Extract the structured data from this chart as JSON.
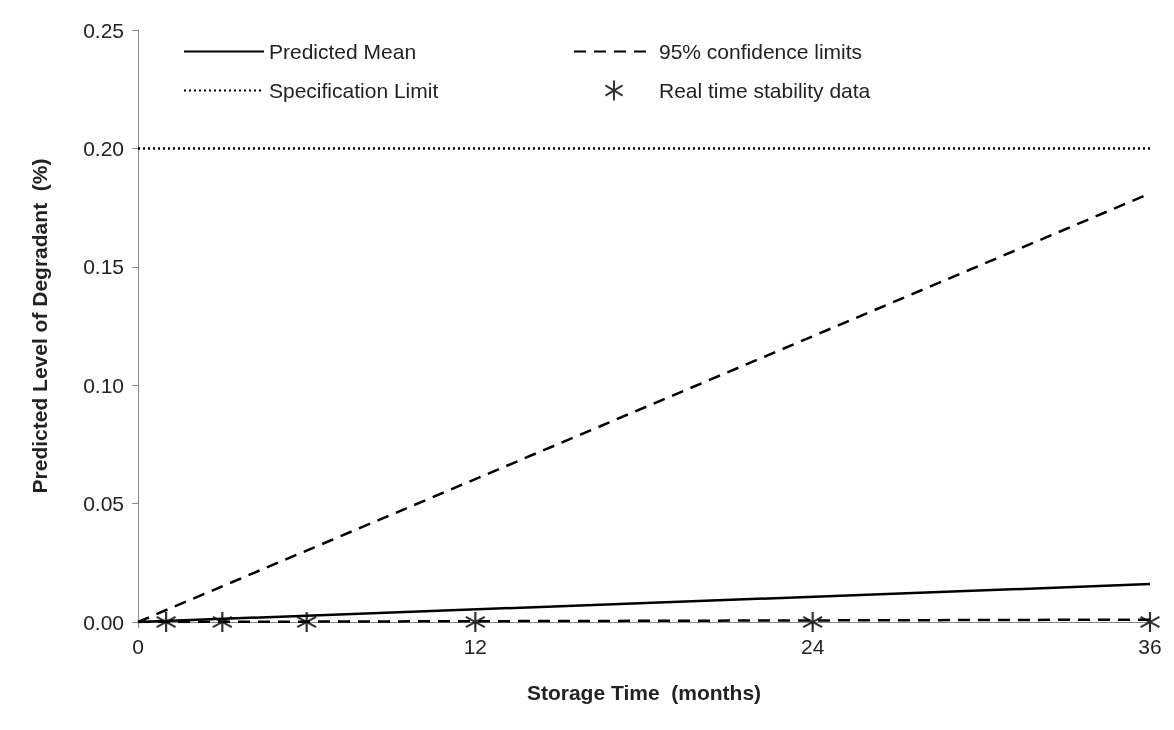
{
  "chart_data": {
    "type": "line",
    "xlabel": "Storage Time  (months)",
    "ylabel": "Predicted Level of Degradant  (%)",
    "xlim": [
      0,
      36
    ],
    "xticks": [
      0,
      12,
      24,
      36
    ],
    "ylim": [
      0,
      0.25
    ],
    "yticks": [
      {
        "value": 0,
        "label": "0.00"
      },
      {
        "value": 0.05,
        "label": "0.05"
      },
      {
        "value": 0.1,
        "label": "0.10"
      },
      {
        "value": 0.15,
        "label": "0.15"
      },
      {
        "value": 0.2,
        "label": "0.20"
      },
      {
        "value": 0.25,
        "label": "0.25"
      }
    ],
    "grid": false,
    "legend": "top left",
    "marker": "none",
    "series": [
      {
        "name": "Predicted Mean",
        "line_style": "solid",
        "color": "#000000",
        "x": [
          0,
          36
        ],
        "values": [
          0,
          0.016
        ]
      },
      {
        "name": "95% confidence limits",
        "line_style": "dashed",
        "color": "#000000",
        "x": [
          0,
          36
        ],
        "values": [
          0,
          0.181
        ]
      },
      {
        "name": "Specification Limit",
        "line_style": "dotted",
        "color": "#000000",
        "x": [
          0,
          36
        ],
        "values": [
          0.2,
          0.2
        ]
      },
      {
        "name": "Real time stability data",
        "type": "scatter",
        "marker": "cross",
        "color": "#000000",
        "x": [
          1,
          3,
          6,
          12,
          24,
          36
        ],
        "values": [
          0,
          0,
          0,
          0,
          0,
          0
        ]
      },
      {
        "line_style": "dashed",
        "color": "#000000",
        "x": [
          0,
          36
        ],
        "values": [
          0,
          0.001
        ]
      }
    ]
  }
}
